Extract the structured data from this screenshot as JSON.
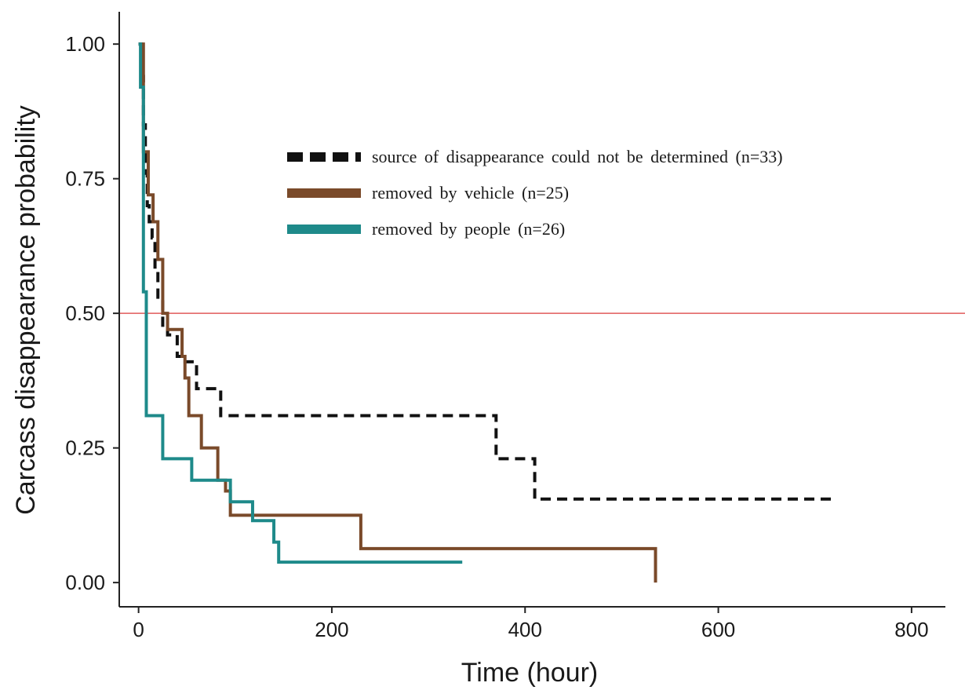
{
  "chart_data": {
    "type": "line",
    "step": true,
    "title": "",
    "xlabel": "Time (hour)",
    "ylabel": "Carcass disappearance probability",
    "xlim": [
      -20,
      835
    ],
    "ylim": [
      -0.045,
      1.06
    ],
    "x_ticks": [
      0,
      200,
      400,
      600,
      800
    ],
    "x_tick_labels": [
      "0",
      "200",
      "400",
      "600",
      "800"
    ],
    "y_ticks": [
      0.0,
      0.25,
      0.5,
      0.75,
      1.0
    ],
    "y_tick_labels": [
      "0.00",
      "0.25",
      "0.50",
      "0.75",
      "1.00"
    ],
    "grid": false,
    "legend_position": "upper-right",
    "reference_line": {
      "y": 0.5,
      "color": "#e05a5a"
    },
    "series": [
      {
        "name": "source of disappearance could not be determined (n=33)",
        "color": "#111111",
        "dash": true,
        "x": [
          0,
          3,
          5,
          7,
          9,
          11,
          14,
          17,
          20,
          25,
          30,
          40,
          45,
          60,
          85,
          370,
          410,
          720
        ],
        "y": [
          1.0,
          0.94,
          0.85,
          0.76,
          0.7,
          0.67,
          0.64,
          0.58,
          0.53,
          0.47,
          0.46,
          0.42,
          0.41,
          0.36,
          0.31,
          0.23,
          0.155,
          0.155
        ]
      },
      {
        "name": "removed by vehicle (n=25)",
        "color": "#7a4a2a",
        "dash": false,
        "x": [
          0,
          5,
          10,
          15,
          20,
          25,
          30,
          35,
          45,
          48,
          52,
          65,
          82,
          90,
          95,
          230,
          535
        ],
        "y": [
          1.0,
          0.8,
          0.72,
          0.67,
          0.6,
          0.5,
          0.47,
          0.47,
          0.42,
          0.38,
          0.31,
          0.25,
          0.19,
          0.17,
          0.125,
          0.063,
          0.0
        ]
      },
      {
        "name": "removed by people (n=26)",
        "color": "#1e8a8a",
        "dash": false,
        "x": [
          0,
          2,
          5,
          8,
          25,
          55,
          90,
          95,
          118,
          140,
          145,
          335
        ],
        "y": [
          1.0,
          0.92,
          0.54,
          0.31,
          0.23,
          0.19,
          0.19,
          0.15,
          0.115,
          0.075,
          0.038,
          0.038
        ]
      }
    ]
  }
}
